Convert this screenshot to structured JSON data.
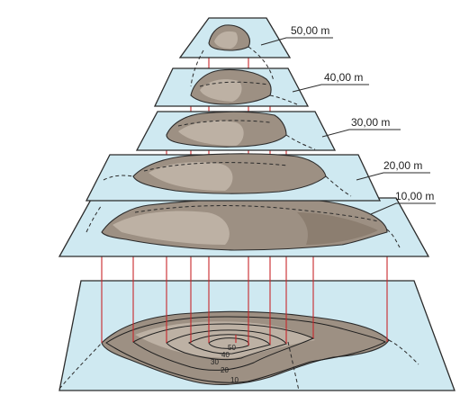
{
  "levels": [
    {
      "label": "50,00 m"
    },
    {
      "label": "40,00 m"
    },
    {
      "label": "30,00 m"
    },
    {
      "label": "20,00 m"
    },
    {
      "label": "10,00 m"
    }
  ],
  "contours": [
    "50",
    "40",
    "30",
    "20",
    "10"
  ],
  "colors": {
    "plane": "#cfe9f1",
    "terrain": "#9d9083",
    "projection_lines": "#c8262b"
  }
}
